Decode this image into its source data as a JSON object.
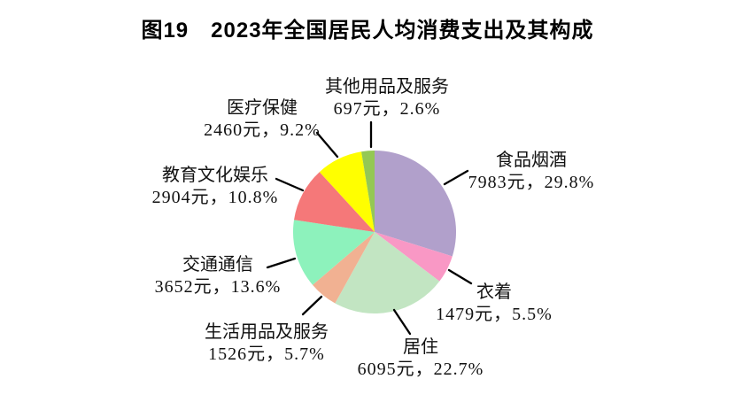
{
  "chart_data": {
    "type": "pie",
    "title": "图19　2023年全国居民人均消费支出及其构成",
    "unit": "元",
    "start_angle_deg": 0,
    "direction": "clockwise",
    "legend": "none",
    "labels_position": "outside-with-leader-lines",
    "slices": [
      {
        "key": "food-tobacco-alcohol",
        "label": "食品烟酒",
        "value": 7983,
        "percent": 29.8,
        "color": "#B1A0CB",
        "value_label": "7983元，29.8%"
      },
      {
        "key": "clothing",
        "label": "衣着",
        "value": 1479,
        "percent": 5.5,
        "color": "#F998C5",
        "value_label": "1479元，5.5%"
      },
      {
        "key": "housing",
        "label": "居住",
        "value": 6095,
        "percent": 22.7,
        "color": "#C2E5C2",
        "value_label": "6095元，22.7%"
      },
      {
        "key": "household-goods-services",
        "label": "生活用品及服务",
        "value": 1526,
        "percent": 5.7,
        "color": "#F1B192",
        "value_label": "1526元，5.7%"
      },
      {
        "key": "transport-communication",
        "label": "交通通信",
        "value": 3652,
        "percent": 13.6,
        "color": "#8DF2BC",
        "value_label": "3652元，13.6%"
      },
      {
        "key": "education-culture-entertainment",
        "label": "教育文化娱乐",
        "value": 2904,
        "percent": 10.8,
        "color": "#F57879",
        "value_label": "2904元，10.8%"
      },
      {
        "key": "healthcare",
        "label": "医疗保健",
        "value": 2460,
        "percent": 9.2,
        "color": "#FFFF00",
        "value_label": "2460元，9.2%"
      },
      {
        "key": "other-goods-services",
        "label": "其他用品及服务",
        "value": 697,
        "percent": 2.6,
        "color": "#94C854",
        "value_label": "697元，2.6%"
      }
    ]
  }
}
